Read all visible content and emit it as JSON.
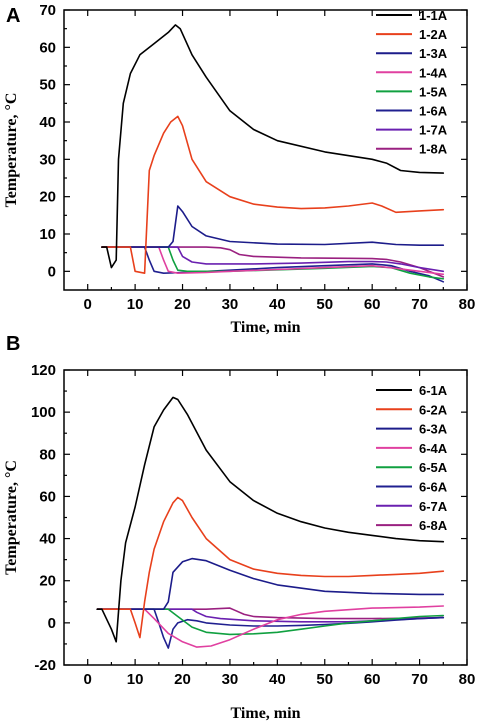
{
  "chart_data": [
    {
      "panel": "A",
      "type": "line",
      "xlabel": "Time,  min",
      "ylabel": "Temperature, °C",
      "xlim": [
        -5,
        80
      ],
      "ylim": [
        -5,
        70
      ],
      "xticks": [
        0,
        10,
        20,
        30,
        40,
        50,
        60,
        70,
        80
      ],
      "yticks": [
        0,
        10,
        20,
        30,
        40,
        50,
        60,
        70
      ],
      "legend_position": "top-right",
      "series": [
        {
          "name": "1-1A",
          "color": "#000000",
          "points": [
            [
              3,
              6.5
            ],
            [
              4,
              6.5
            ],
            [
              5,
              1
            ],
            [
              6,
              3
            ],
            [
              6.5,
              30
            ],
            [
              7.5,
              45
            ],
            [
              9,
              53
            ],
            [
              11,
              58
            ],
            [
              14,
              61
            ],
            [
              17,
              64
            ],
            [
              18.5,
              66
            ],
            [
              19.5,
              65
            ],
            [
              22,
              58
            ],
            [
              25,
              52
            ],
            [
              30,
              43
            ],
            [
              35,
              38
            ],
            [
              40,
              35
            ],
            [
              50,
              32
            ],
            [
              60,
              30
            ],
            [
              63,
              29
            ],
            [
              66,
              27
            ],
            [
              70,
              26.5
            ],
            [
              75,
              26.3
            ]
          ]
        },
        {
          "name": "1-2A",
          "color": "#e8401c",
          "points": [
            [
              3,
              6.5
            ],
            [
              9,
              6.5
            ],
            [
              10,
              0
            ],
            [
              12,
              -0.5
            ],
            [
              13,
              27
            ],
            [
              14,
              31
            ],
            [
              16,
              37
            ],
            [
              17.5,
              40
            ],
            [
              19,
              41.5
            ],
            [
              20,
              39
            ],
            [
              22,
              30
            ],
            [
              25,
              24
            ],
            [
              30,
              20
            ],
            [
              35,
              18
            ],
            [
              40,
              17.2
            ],
            [
              45,
              16.8
            ],
            [
              50,
              17
            ],
            [
              55,
              17.5
            ],
            [
              60,
              18.3
            ],
            [
              62,
              17.5
            ],
            [
              65,
              15.8
            ],
            [
              70,
              16.2
            ],
            [
              75,
              16.5
            ]
          ]
        },
        {
          "name": "1-3A",
          "color": "#1c1c8a",
          "points": [
            [
              3,
              6.5
            ],
            [
              17,
              6.5
            ],
            [
              18,
              8
            ],
            [
              19,
              17.5
            ],
            [
              20,
              16
            ],
            [
              22,
              12
            ],
            [
              25,
              9.5
            ],
            [
              30,
              8
            ],
            [
              40,
              7.3
            ],
            [
              50,
              7.2
            ],
            [
              60,
              7.8
            ],
            [
              65,
              7.2
            ],
            [
              70,
              7
            ],
            [
              75,
              7
            ]
          ]
        },
        {
          "name": "1-4A",
          "color": "#e040a0",
          "points": [
            [
              3,
              6.5
            ],
            [
              15,
              6.5
            ],
            [
              16,
              3
            ],
            [
              17,
              0
            ],
            [
              19,
              -0.5
            ],
            [
              25,
              -0.3
            ],
            [
              30,
              0
            ],
            [
              40,
              0.5
            ],
            [
              50,
              1
            ],
            [
              60,
              1.5
            ],
            [
              65,
              0.8
            ],
            [
              70,
              0
            ],
            [
              75,
              -0.8
            ]
          ]
        },
        {
          "name": "1-5A",
          "color": "#10a040",
          "points": [
            [
              3,
              6.5
            ],
            [
              17,
              6.5
            ],
            [
              18,
              3
            ],
            [
              19,
              0.3
            ],
            [
              21,
              0
            ],
            [
              30,
              0
            ],
            [
              40,
              0.4
            ],
            [
              50,
              0.8
            ],
            [
              60,
              1.3
            ],
            [
              64,
              1
            ],
            [
              68,
              -0.5
            ],
            [
              72,
              -1.5
            ],
            [
              75,
              -2
            ]
          ]
        },
        {
          "name": "1-6A",
          "color": "#202090",
          "points": [
            [
              3,
              6.5
            ],
            [
              12,
              6.5
            ],
            [
              13,
              3
            ],
            [
              14,
              0
            ],
            [
              16,
              -0.5
            ],
            [
              20,
              -0.3
            ],
            [
              30,
              0.3
            ],
            [
              40,
              1
            ],
            [
              50,
              1.5
            ],
            [
              60,
              2
            ],
            [
              64,
              1.5
            ],
            [
              68,
              0
            ],
            [
              72,
              -1.2
            ],
            [
              75,
              -2.8
            ]
          ]
        },
        {
          "name": "1-7A",
          "color": "#6a20b0",
          "points": [
            [
              3,
              6.5
            ],
            [
              19,
              6.5
            ],
            [
              20,
              4
            ],
            [
              22,
              2.5
            ],
            [
              25,
              2
            ],
            [
              35,
              2
            ],
            [
              45,
              2.2
            ],
            [
              55,
              2.6
            ],
            [
              60,
              2.6
            ],
            [
              63,
              2.5
            ],
            [
              66,
              2
            ],
            [
              70,
              1
            ],
            [
              75,
              0
            ]
          ]
        },
        {
          "name": "1-8A",
          "color": "#9a2080",
          "points": [
            [
              3,
              6.5
            ],
            [
              25,
              6.5
            ],
            [
              28,
              6.3
            ],
            [
              30,
              5.8
            ],
            [
              32,
              4.5
            ],
            [
              35,
              4
            ],
            [
              45,
              3.6
            ],
            [
              55,
              3.5
            ],
            [
              60,
              3.4
            ],
            [
              63,
              3.2
            ],
            [
              66,
              2.5
            ],
            [
              70,
              1
            ],
            [
              75,
              -1.5
            ]
          ]
        }
      ]
    },
    {
      "panel": "B",
      "type": "line",
      "xlabel": "Time, min",
      "ylabel": "Temperature, °C",
      "xlim": [
        -5,
        80
      ],
      "ylim": [
        -20,
        120
      ],
      "xticks": [
        0,
        10,
        20,
        30,
        40,
        50,
        60,
        70,
        80
      ],
      "yticks": [
        -20,
        0,
        20,
        40,
        60,
        80,
        100,
        120
      ],
      "legend_position": "top-right",
      "series": [
        {
          "name": "6-1A",
          "color": "#000000",
          "points": [
            [
              2,
              6.5
            ],
            [
              3,
              6.5
            ],
            [
              5,
              -3
            ],
            [
              6,
              -9
            ],
            [
              7,
              20
            ],
            [
              8,
              38
            ],
            [
              10,
              55
            ],
            [
              12,
              75
            ],
            [
              14,
              93
            ],
            [
              16,
              101
            ],
            [
              18,
              107
            ],
            [
              19,
              106
            ],
            [
              21,
              99
            ],
            [
              25,
              82
            ],
            [
              30,
              67
            ],
            [
              35,
              58
            ],
            [
              40,
              52
            ],
            [
              45,
              48
            ],
            [
              50,
              45
            ],
            [
              55,
              43
            ],
            [
              60,
              41.5
            ],
            [
              65,
              40
            ],
            [
              70,
              39
            ],
            [
              75,
              38.5
            ]
          ]
        },
        {
          "name": "6-2A",
          "color": "#e8401c",
          "points": [
            [
              2,
              6.5
            ],
            [
              9,
              6.5
            ],
            [
              10,
              0
            ],
            [
              11,
              -7
            ],
            [
              12,
              10
            ],
            [
              13,
              24
            ],
            [
              14,
              35
            ],
            [
              16,
              48
            ],
            [
              18,
              57
            ],
            [
              19,
              59.5
            ],
            [
              20,
              58
            ],
            [
              22,
              50
            ],
            [
              25,
              40
            ],
            [
              30,
              30
            ],
            [
              35,
              25.5
            ],
            [
              40,
              23.5
            ],
            [
              45,
              22.5
            ],
            [
              50,
              22
            ],
            [
              55,
              22
            ],
            [
              60,
              22.5
            ],
            [
              65,
              23
            ],
            [
              70,
              23.5
            ],
            [
              75,
              24.5
            ]
          ]
        },
        {
          "name": "6-3A",
          "color": "#1c1c8a",
          "points": [
            [
              2,
              6.5
            ],
            [
              16,
              6.5
            ],
            [
              17,
              10
            ],
            [
              18,
              24
            ],
            [
              20,
              29
            ],
            [
              22,
              30.5
            ],
            [
              25,
              29.5
            ],
            [
              30,
              25
            ],
            [
              35,
              21
            ],
            [
              40,
              18
            ],
            [
              50,
              15
            ],
            [
              60,
              14
            ],
            [
              70,
              13.5
            ],
            [
              75,
              13.5
            ]
          ]
        },
        {
          "name": "6-4A",
          "color": "#e040a0",
          "points": [
            [
              2,
              6.5
            ],
            [
              12,
              6.5
            ],
            [
              14,
              2
            ],
            [
              17,
              -5
            ],
            [
              20,
              -9
            ],
            [
              23,
              -11.5
            ],
            [
              26,
              -11
            ],
            [
              30,
              -8
            ],
            [
              35,
              -3
            ],
            [
              40,
              1.5
            ],
            [
              45,
              4
            ],
            [
              50,
              5.5
            ],
            [
              60,
              7
            ],
            [
              70,
              7.5
            ],
            [
              75,
              8
            ]
          ]
        },
        {
          "name": "6-5A",
          "color": "#10a040",
          "points": [
            [
              2,
              6.5
            ],
            [
              17,
              6.5
            ],
            [
              19,
              3
            ],
            [
              22,
              -2
            ],
            [
              25,
              -4.5
            ],
            [
              30,
              -5.5
            ],
            [
              35,
              -5.2
            ],
            [
              40,
              -4.5
            ],
            [
              45,
              -3
            ],
            [
              50,
              -1.5
            ],
            [
              55,
              0
            ],
            [
              60,
              1
            ],
            [
              65,
              2
            ],
            [
              70,
              3
            ],
            [
              75,
              3.5
            ]
          ]
        },
        {
          "name": "6-6A",
          "color": "#202090",
          "points": [
            [
              2,
              6.5
            ],
            [
              14,
              6.5
            ],
            [
              15,
              0
            ],
            [
              16,
              -7
            ],
            [
              17,
              -12
            ],
            [
              18,
              -3
            ],
            [
              19,
              0
            ],
            [
              21,
              1.5
            ],
            [
              23,
              1
            ],
            [
              25,
              0
            ],
            [
              30,
              -1
            ],
            [
              35,
              -1.5
            ],
            [
              40,
              -1.5
            ],
            [
              45,
              -1.2
            ],
            [
              50,
              -0.8
            ],
            [
              55,
              -0.2
            ],
            [
              60,
              0.5
            ],
            [
              65,
              1.3
            ],
            [
              70,
              2
            ],
            [
              75,
              2.5
            ]
          ]
        },
        {
          "name": "6-7A",
          "color": "#6a20b0",
          "points": [
            [
              2,
              6.5
            ],
            [
              22,
              6.5
            ],
            [
              23,
              5
            ],
            [
              25,
              3
            ],
            [
              28,
              2
            ],
            [
              35,
              1
            ],
            [
              45,
              0.5
            ],
            [
              55,
              0.5
            ],
            [
              60,
              1
            ],
            [
              65,
              1.5
            ],
            [
              70,
              2
            ],
            [
              75,
              2.5
            ]
          ]
        },
        {
          "name": "6-8A",
          "color": "#9a2080",
          "points": [
            [
              2,
              6.5
            ],
            [
              25,
              6.5
            ],
            [
              30,
              7
            ],
            [
              31,
              6
            ],
            [
              33,
              4
            ],
            [
              35,
              3
            ],
            [
              40,
              2.5
            ],
            [
              50,
              2
            ],
            [
              60,
              2
            ],
            [
              70,
              2.3
            ],
            [
              75,
              2.5
            ]
          ]
        }
      ]
    }
  ]
}
